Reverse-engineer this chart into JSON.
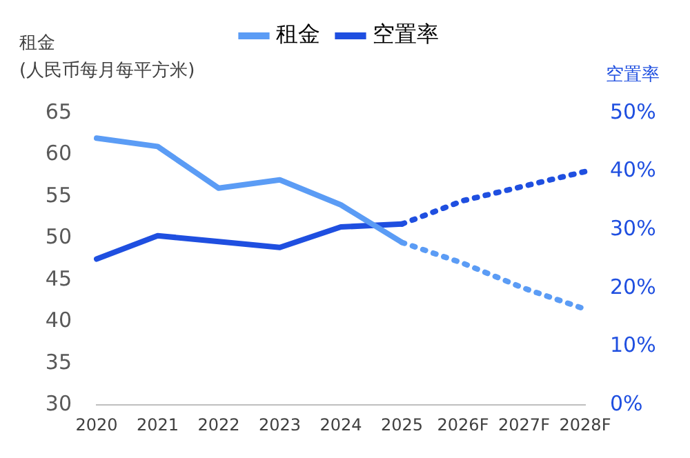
{
  "chart_data": {
    "type": "line",
    "ylabel": "租金\n(人民币每月每平方米)",
    "y2label": "空置率",
    "categories": [
      "2020",
      "2021",
      "2022",
      "2023",
      "2024",
      "2025",
      "2026F",
      "2027F",
      "2028F"
    ],
    "series": [
      {
        "name": "租金",
        "color": "#5b9cf5",
        "values": [
          62,
          61,
          56,
          57,
          54,
          49.5,
          null,
          null,
          null
        ],
        "line_style": "solid"
      },
      {
        "name": "空置率",
        "color": "#1f4fe0",
        "axis": "y2",
        "values": [
          25,
          29,
          28,
          27,
          30.5,
          31,
          null,
          null,
          null
        ],
        "line_style": "solid"
      },
      {
        "color": "#5b9cf5",
        "values": [
          null,
          null,
          null,
          null,
          null,
          49.5,
          47,
          44,
          41.5
        ],
        "line_style": "dotted"
      },
      {
        "color": "#1f4fe0",
        "axis": "y2",
        "values": [
          null,
          null,
          null,
          null,
          null,
          31,
          35,
          37.5,
          40
        ],
        "line_style": "dotted"
      }
    ],
    "ylim": [
      30,
      65
    ],
    "yticks": [
      30,
      35,
      40,
      45,
      50,
      55,
      60,
      65
    ],
    "y2lim": [
      0,
      50
    ],
    "y2ticks": [
      {
        "value": 0,
        "label": "0%"
      },
      {
        "value": 10,
        "label": "10%"
      },
      {
        "value": 20,
        "label": "20%"
      },
      {
        "value": 30,
        "label": "30%"
      },
      {
        "value": 40,
        "label": "40%"
      },
      {
        "value": 50,
        "label": "50%"
      }
    ],
    "grid": false,
    "legend": "top",
    "marker": "none"
  }
}
